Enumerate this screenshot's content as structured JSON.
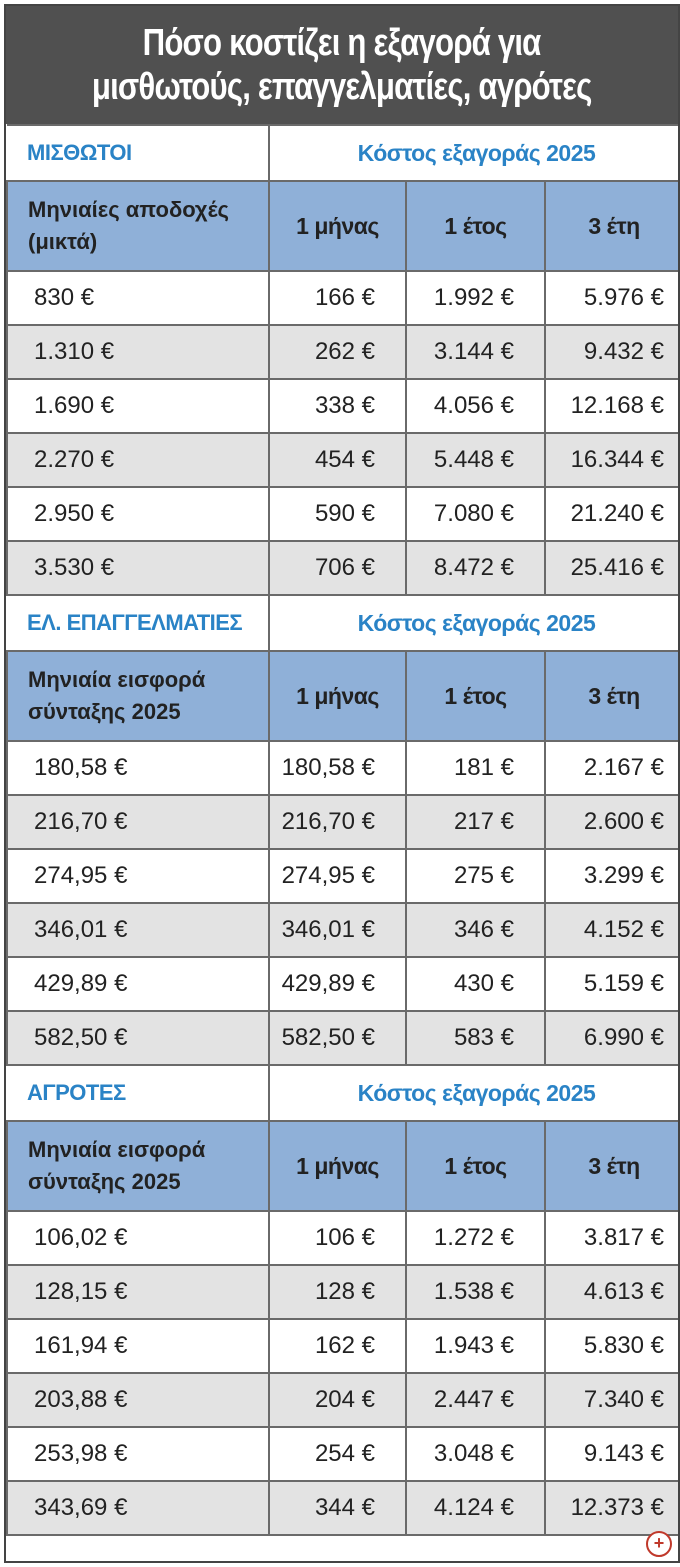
{
  "title": {
    "line1": "Πόσο κοστίζει η εξαγορά για",
    "line2": "μισθωτούς, επαγγελματίες, αγρότες"
  },
  "sections": [
    {
      "name": "ΜΙΣΘΩΤΟΙ",
      "cost_label": "Κόστος εξαγοράς 2025",
      "base_header_1": "Μηνιαίες αποδοχές",
      "base_header_2": "(μικτά)",
      "col_month": "1 μήνας",
      "col_year": "1 έτος",
      "col_3years": "3 έτη",
      "rows": [
        [
          "830 €",
          "166 €",
          "1.992 €",
          "5.976 €"
        ],
        [
          "1.310 €",
          "262 €",
          "3.144 €",
          "9.432 €"
        ],
        [
          "1.690 €",
          "338 €",
          "4.056 €",
          "12.168 €"
        ],
        [
          "2.270 €",
          "454 €",
          "5.448 €",
          "16.344 €"
        ],
        [
          "2.950 €",
          "590 €",
          "7.080 €",
          "21.240 €"
        ],
        [
          "3.530 €",
          "706 €",
          "8.472 €",
          "25.416 €"
        ]
      ]
    },
    {
      "name": "ΕΛ. ΕΠΑΓΓΕΛΜΑΤΙΕΣ",
      "cost_label": "Κόστος εξαγοράς 2025",
      "base_header_1": "Μηνιαία εισφορά",
      "base_header_2": "σύνταξης 2025",
      "col_month": "1 μήνας",
      "col_year": "1 έτος",
      "col_3years": "3 έτη",
      "rows": [
        [
          "180,58 €",
          "180,58 €",
          "181 €",
          "2.167 €"
        ],
        [
          "216,70 €",
          "216,70 €",
          "217 €",
          "2.600 €"
        ],
        [
          "274,95 €",
          "274,95 €",
          "275 €",
          "3.299 €"
        ],
        [
          "346,01 €",
          "346,01 €",
          "346 €",
          "4.152 €"
        ],
        [
          "429,89 €",
          "429,89 €",
          "430 €",
          "5.159 €"
        ],
        [
          "582,50 €",
          "582,50 €",
          "583 €",
          "6.990 €"
        ]
      ]
    },
    {
      "name": "ΑΓΡΟΤΕΣ",
      "cost_label": "Κόστος εξαγοράς 2025",
      "base_header_1": "Μηνιαία εισφορά",
      "base_header_2": "σύνταξης 2025",
      "col_month": "1 μήνας",
      "col_year": "1 έτος",
      "col_3years": "3 έτη",
      "rows": [
        [
          "106,02 €",
          "106 €",
          "1.272 €",
          "3.817 €"
        ],
        [
          "128,15 €",
          "128 €",
          "1.538 €",
          "4.613 €"
        ],
        [
          "161,94 €",
          "162 €",
          "1.943 €",
          "5.830 €"
        ],
        [
          "203,88 €",
          "204 €",
          "2.447 €",
          "7.340 €"
        ],
        [
          "253,98 €",
          "254 €",
          "3.048 €",
          "9.143 €"
        ],
        [
          "343,69 €",
          "344 €",
          "4.124 €",
          "12.373 €"
        ]
      ]
    }
  ],
  "zoom_icon": "zoom-in-icon",
  "colors": {
    "title_bg": "#505050",
    "header_bg": "#8fb0d8",
    "section_label": "#2a83c6",
    "alt_row": "#e3e3e3"
  }
}
